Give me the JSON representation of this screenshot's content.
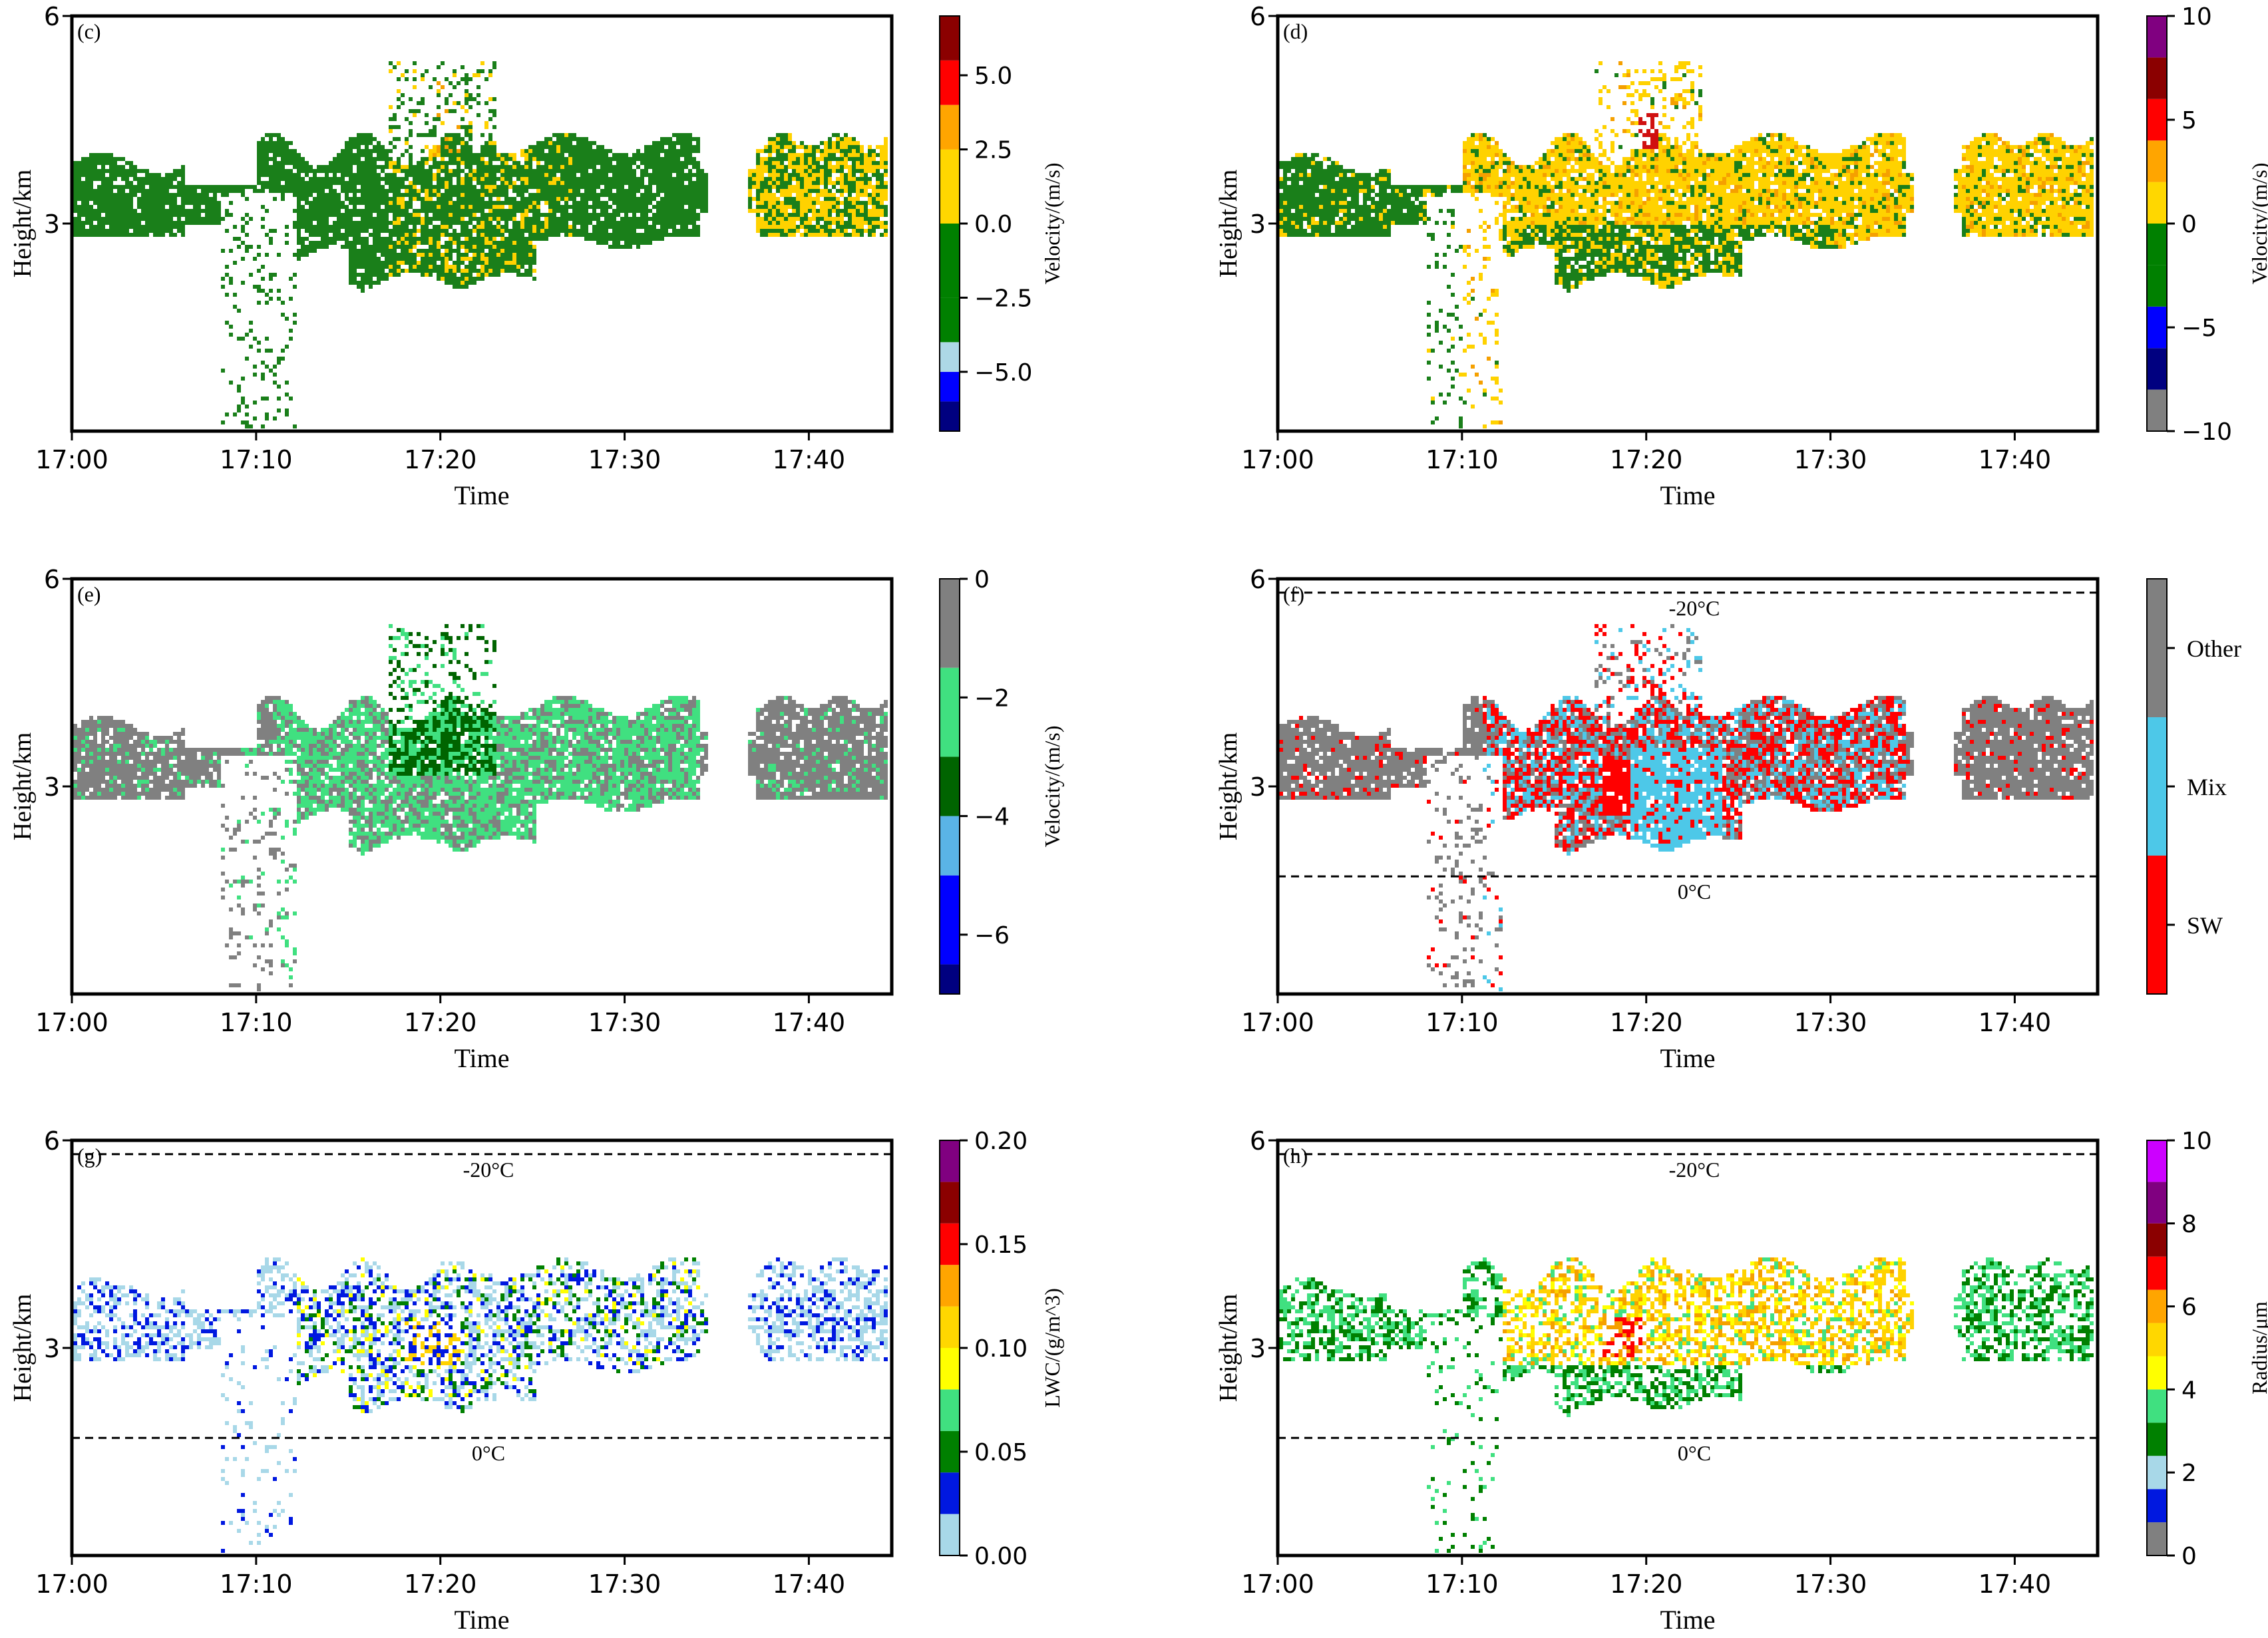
{
  "colors": {
    "cloud_green": "#1a7f1a",
    "cloud_yellow": "#ffd200",
    "cloud_orange": "#f5a000",
    "cloud_gray": "#808080",
    "cloud_red": "#ff0000",
    "cloud_mix": "#4dc8e8",
    "cloud_lgreen": "#40e080",
    "cloud_blue": "#0018e0",
    "cloud_lblue": "#a8d8e8"
  },
  "chart_data": [
    {
      "type": "heatmap",
      "panel": "(c)",
      "xlabel": "Time",
      "ylabel": "Height/km",
      "x_ticks": [
        "17:00",
        "17:10",
        "17:20",
        "17:30",
        "17:40"
      ],
      "x_range_min": [
        0,
        44.5
      ],
      "y_ticks": [
        "3",
        "6"
      ],
      "ylim_km": [
        0,
        6
      ],
      "colorbar": {
        "label": "Velocity/(m/s)",
        "range": [
          -7,
          7
        ],
        "colors": [
          "#000080",
          "#0000ff",
          "#add8e6",
          "#008000",
          "#008000",
          "#ffd700",
          "#ffa500",
          "#ff0000",
          "#8b0000"
        ],
        "bounds": [
          -7,
          -6,
          -5,
          -4,
          -2.5,
          0,
          2.5,
          4,
          5.5,
          7
        ],
        "ticks": [
          -5.0,
          -2.5,
          0.0,
          2.5,
          5.0
        ],
        "tick_labels": [
          "−5.0",
          "−2.5",
          "0.0",
          "2.5",
          "5.0"
        ]
      },
      "isotherms": []
    },
    {
      "type": "heatmap",
      "panel": "(d)",
      "xlabel": "Time",
      "ylabel": "Height/km",
      "x_ticks": [
        "17:00",
        "17:10",
        "17:20",
        "17:30",
        "17:40"
      ],
      "x_range_min": [
        0,
        44.5
      ],
      "y_ticks": [
        "3",
        "6"
      ],
      "ylim_km": [
        0,
        6
      ],
      "colorbar": {
        "label": "Velocity/(m/s)",
        "range": [
          -10,
          10
        ],
        "colors": [
          "#808080",
          "#000080",
          "#0000ff",
          "#008000",
          "#008000",
          "#ffd700",
          "#ffa500",
          "#ff0000",
          "#8b0000",
          "#800080"
        ],
        "bounds": [
          -10,
          -8,
          -6,
          -4,
          -2,
          0,
          2,
          4,
          6,
          8,
          10
        ],
        "ticks": [
          -10,
          -5,
          0,
          5,
          10
        ],
        "tick_labels": [
          "−10",
          "−5",
          "0",
          "5",
          "10"
        ]
      },
      "isotherms": []
    },
    {
      "type": "heatmap",
      "panel": "(e)",
      "xlabel": "Time",
      "ylabel": "Height/km",
      "x_ticks": [
        "17:00",
        "17:10",
        "17:20",
        "17:30",
        "17:40"
      ],
      "x_range_min": [
        0,
        44.5
      ],
      "y_ticks": [
        "3",
        "6"
      ],
      "ylim_km": [
        0,
        6
      ],
      "colorbar": {
        "label": "Velocity/(m/s)",
        "range": [
          -7,
          0
        ],
        "colors": [
          "#000080",
          "#0000ff",
          "#5ab4e6",
          "#006400",
          "#40e080",
          "#808080"
        ],
        "bounds": [
          -7,
          -6.5,
          -5,
          -4,
          -3,
          -1.5,
          0
        ],
        "ticks": [
          -6,
          -4,
          -2,
          0
        ],
        "tick_labels": [
          "−6",
          "−4",
          "−2",
          "0"
        ]
      },
      "isotherms": []
    },
    {
      "type": "heatmap",
      "panel": "(f)",
      "xlabel": "Time",
      "ylabel": "Height/km",
      "x_ticks": [
        "17:00",
        "17:10",
        "17:20",
        "17:30",
        "17:40"
      ],
      "x_range_min": [
        0,
        44.5
      ],
      "y_ticks": [
        "3",
        "6"
      ],
      "ylim_km": [
        0,
        6
      ],
      "colorbar": {
        "label": "",
        "categories": [
          "SW",
          "Mix",
          "Other"
        ],
        "colors": [
          "#ff0000",
          "#4dc8e8",
          "#808080"
        ]
      },
      "isotherms": [
        {
          "label": "-20°C",
          "height_km": 5.8
        },
        {
          "label": "0°C",
          "height_km": 1.7
        }
      ]
    },
    {
      "type": "heatmap",
      "panel": "(g)",
      "xlabel": "Time",
      "ylabel": "Height/km",
      "x_ticks": [
        "17:00",
        "17:10",
        "17:20",
        "17:30",
        "17:40"
      ],
      "x_range_min": [
        0,
        44.5
      ],
      "y_ticks": [
        "3",
        "6"
      ],
      "ylim_km": [
        0,
        6
      ],
      "colorbar": {
        "label": "LWC/(g/m^3)",
        "range": [
          0,
          0.2
        ],
        "colors": [
          "#a8d8e8",
          "#0018e0",
          "#008000",
          "#40e080",
          "#ffff00",
          "#ffd700",
          "#ffa500",
          "#ff0000",
          "#8b0000",
          "#800080"
        ],
        "bounds": [
          0,
          0.02,
          0.04,
          0.06,
          0.08,
          0.1,
          0.12,
          0.14,
          0.16,
          0.18,
          0.2
        ],
        "ticks": [
          0,
          0.05,
          0.1,
          0.15,
          0.2
        ],
        "tick_labels": [
          "0.00",
          "0.05",
          "0.10",
          "0.15",
          "0.20"
        ]
      },
      "isotherms": [
        {
          "label": "-20°C",
          "height_km": 5.8
        },
        {
          "label": "0°C",
          "height_km": 1.7
        }
      ]
    },
    {
      "type": "heatmap",
      "panel": "(h)",
      "xlabel": "Time",
      "ylabel": "Height/km",
      "x_ticks": [
        "17:00",
        "17:10",
        "17:20",
        "17:30",
        "17:40"
      ],
      "x_range_min": [
        0,
        44.5
      ],
      "y_ticks": [
        "3",
        "6"
      ],
      "ylim_km": [
        0,
        6
      ],
      "colorbar": {
        "label": "Radius/μm",
        "range": [
          0,
          10
        ],
        "colors": [
          "#808080",
          "#0018e0",
          "#a8d8e8",
          "#008000",
          "#40e080",
          "#ffff00",
          "#ffd700",
          "#ffa500",
          "#ff0000",
          "#8b0000",
          "#800080",
          "#cc00ff"
        ],
        "bounds": [
          0,
          0.8,
          1.6,
          2.4,
          3.2,
          4,
          4.8,
          5.6,
          6.4,
          7.2,
          8,
          9,
          10
        ],
        "ticks": [
          0,
          2,
          4,
          6,
          8,
          10
        ],
        "tick_labels": [
          "0",
          "2",
          "4",
          "6",
          "8",
          "10"
        ]
      },
      "isotherms": [
        {
          "label": "-20°C",
          "height_km": 5.8
        },
        {
          "label": "0°C",
          "height_km": 1.7
        }
      ]
    }
  ]
}
